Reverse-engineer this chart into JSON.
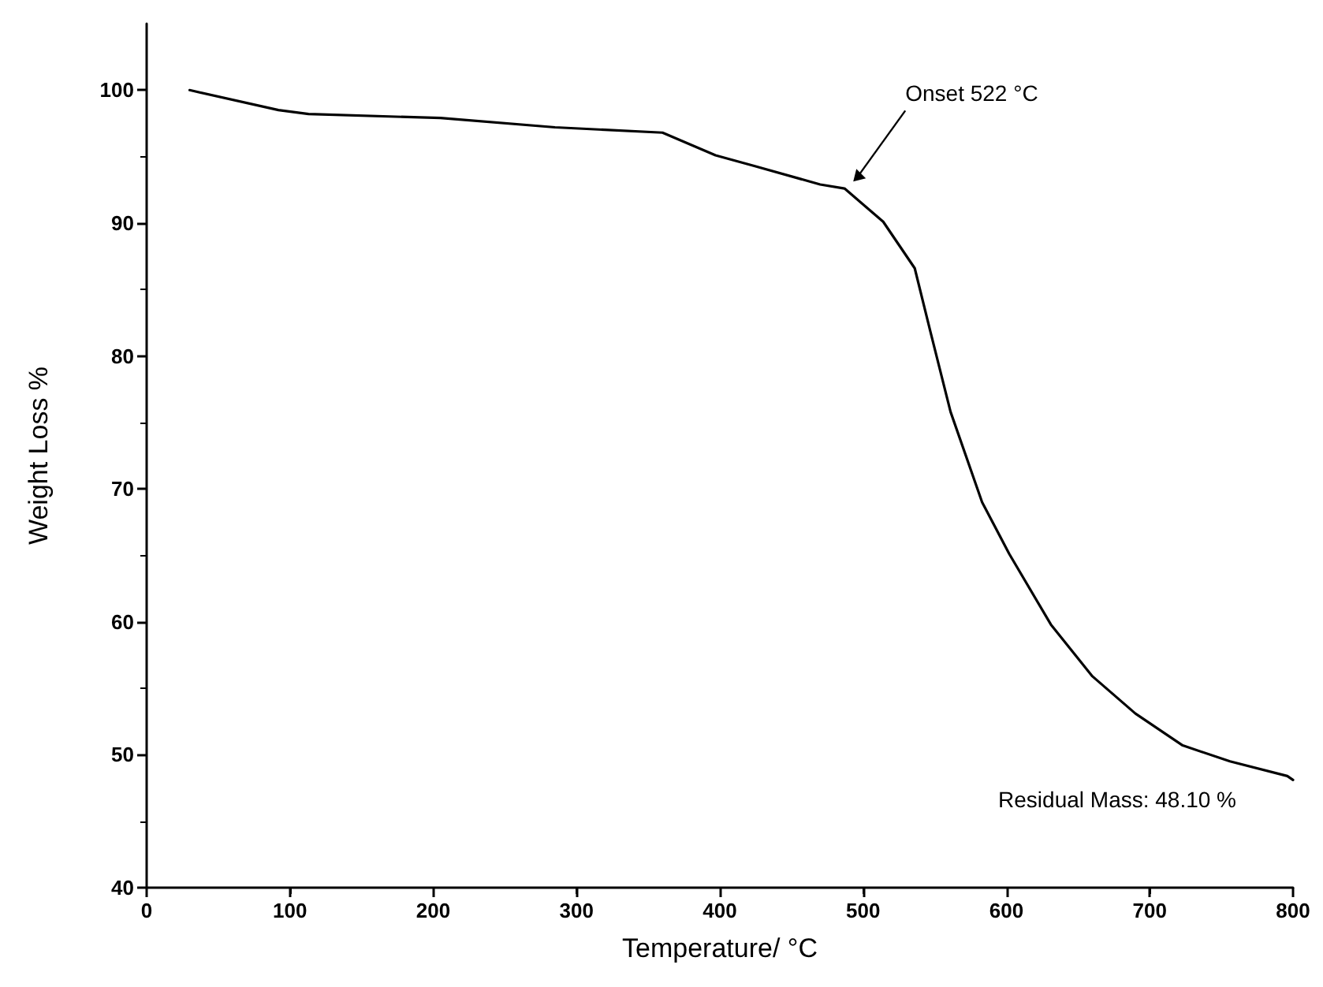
{
  "chart_data": {
    "type": "line",
    "xlabel": "Temperature/ °C",
    "ylabel": "Weight Loss %",
    "xlim": [
      0,
      800
    ],
    "xticks": [
      0,
      100,
      200,
      300,
      400,
      500,
      600,
      700,
      800
    ],
    "ylim": [
      40,
      105
    ],
    "yticks": [
      40,
      50,
      60,
      70,
      80,
      90,
      100
    ],
    "grid": false,
    "marker": "none",
    "line_style": "solid",
    "series": [
      {
        "color": "#000000",
        "x": [
          30,
          92,
          113,
          205,
          285,
          360,
          397,
          424,
          470,
          487,
          514,
          536,
          547,
          561,
          583,
          602,
          631,
          660,
          690,
          723,
          756,
          796,
          800
        ],
        "values": [
          100,
          98.5,
          98.2,
          97.9,
          97.2,
          96.8,
          95.1,
          94.3,
          92.9,
          92.6,
          90.1,
          86.6,
          81.8,
          75.8,
          69.0,
          65.1,
          59.8,
          55.9,
          53.1,
          50.7,
          49.5,
          48.4,
          48.1
        ]
      }
    ],
    "annotations": [
      {
        "text": "Onset 522 °C",
        "x": 492,
        "y": 93
      },
      "Residual Mass: 48.10 %"
    ]
  }
}
